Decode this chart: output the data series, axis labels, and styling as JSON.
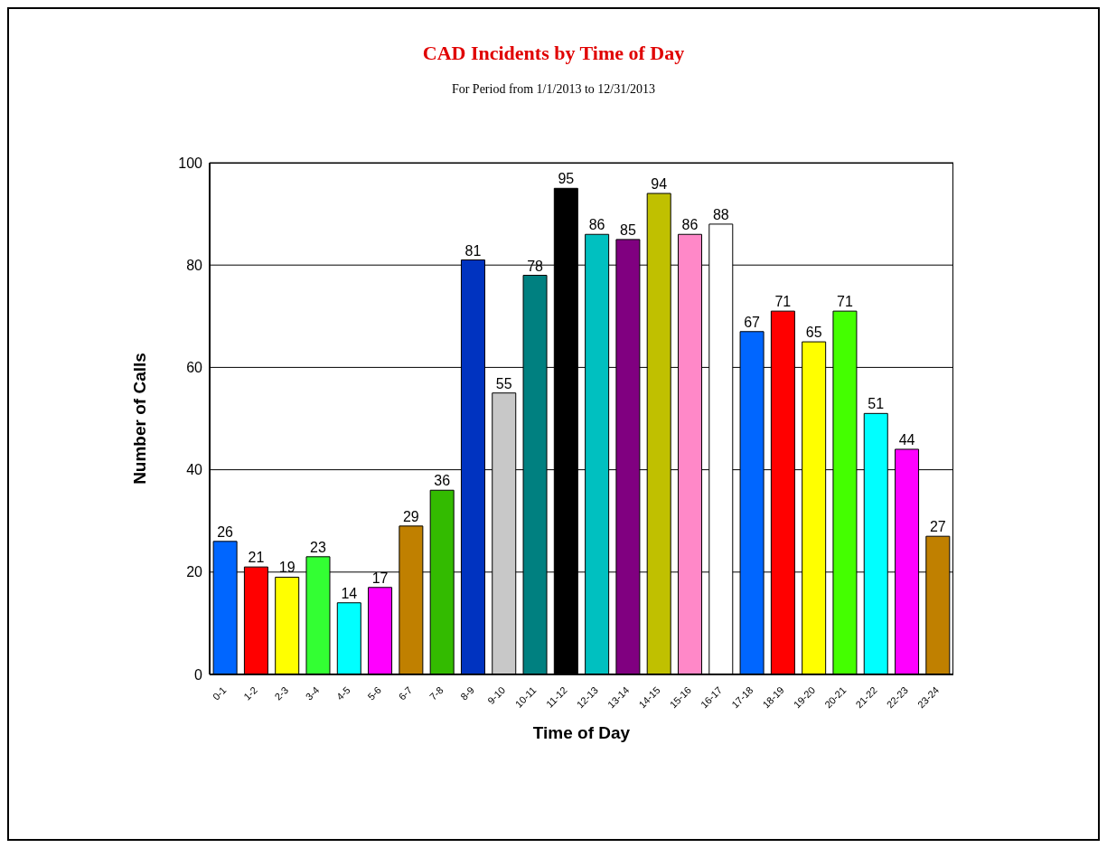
{
  "chart_data": {
    "type": "bar",
    "title": "CAD Incidents by Time of Day",
    "subtitle": "For Period from 1/1/2013 to 12/31/2013",
    "xlabel": "Time of Day",
    "ylabel": "Number of Calls",
    "categories": [
      "0-1",
      "1-2",
      "2-3",
      "3-4",
      "4-5",
      "5-6",
      "6-7",
      "7-8",
      "8-9",
      "9-10",
      "10-11",
      "11-12",
      "12-13",
      "13-14",
      "14-15",
      "15-16",
      "16-17",
      "17-18",
      "18-19",
      "19-20",
      "20-21",
      "21-22",
      "22-23",
      "23-24"
    ],
    "values": [
      26,
      21,
      19,
      23,
      14,
      17,
      29,
      36,
      81,
      55,
      78,
      95,
      86,
      85,
      94,
      86,
      88,
      67,
      71,
      65,
      71,
      51,
      44,
      27
    ],
    "colors": [
      "#0066ff",
      "#ff0000",
      "#ffff00",
      "#33ff33",
      "#00ffff",
      "#ff00ff",
      "#c08000",
      "#33bb00",
      "#0033c0",
      "#c8c8c8",
      "#008080",
      "#000000",
      "#00c0c0",
      "#800080",
      "#c0c000",
      "#ff88c8",
      "#ffffff",
      "#0066ff",
      "#ff0000",
      "#ffff00",
      "#44ff00",
      "#00ffff",
      "#ff00ff",
      "#c08000"
    ],
    "ylim": [
      0,
      100
    ],
    "yticks": [
      0,
      20,
      40,
      60,
      80,
      100
    ],
    "grid": "y",
    "data_labels": true,
    "legend": false
  }
}
